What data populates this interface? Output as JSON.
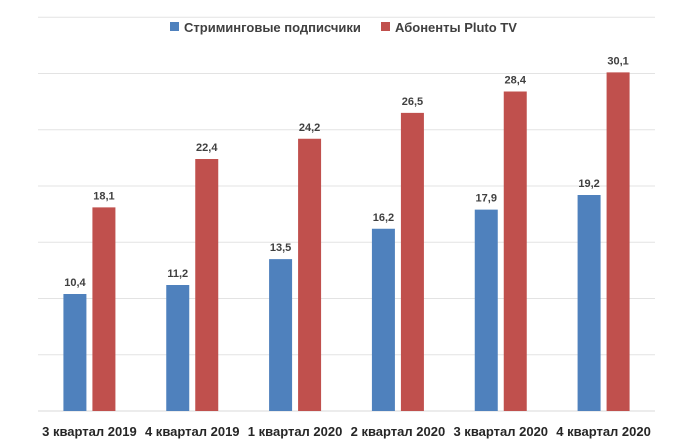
{
  "chart_data": {
    "type": "bar",
    "categories": [
      "3 квартал 2019",
      "4 квартал 2019",
      "1 квартал 2020",
      "2 квартал 2020",
      "3 квартал 2020",
      "4 квартал 2020"
    ],
    "series": [
      {
        "name": "Стриминговые подписчики",
        "values": [
          10.4,
          11.2,
          13.5,
          16.2,
          17.9,
          19.2
        ],
        "labels": [
          "10,4",
          "11,2",
          "13,5",
          "16,2",
          "17,9",
          "19,2"
        ],
        "color": "#4f81bd"
      },
      {
        "name": "Абоненты Pluto TV",
        "values": [
          18.1,
          22.4,
          24.2,
          26.5,
          28.4,
          30.1
        ],
        "labels": [
          "18,1",
          "22,4",
          "24,2",
          "26,5",
          "28,4",
          "30,1"
        ],
        "color": "#c0504d"
      }
    ],
    "ylim": [
      0,
      35
    ],
    "grid": true,
    "legend_position": "top-center",
    "title": "",
    "xlabel": "",
    "ylabel": ""
  }
}
